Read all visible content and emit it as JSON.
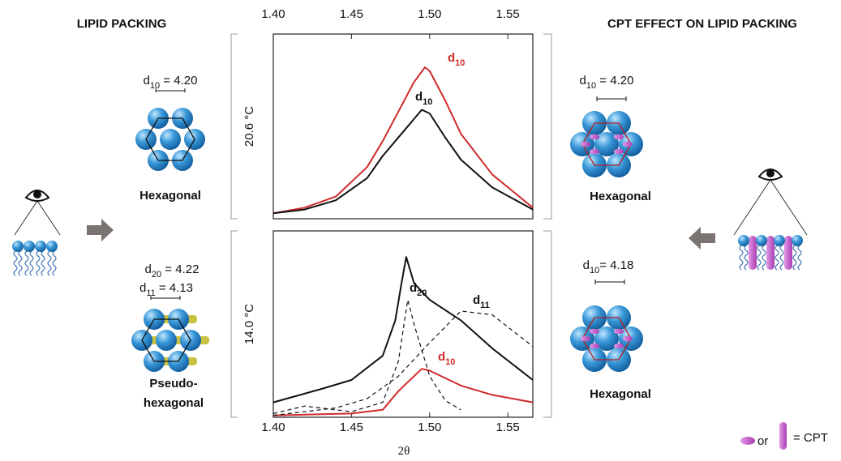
{
  "chart_data": [
    {
      "type": "line",
      "xlim": [
        1.4,
        1.566
      ],
      "xticks": [
        {
          "value": 1.4,
          "label": "1.40"
        },
        1.45,
        {
          "value": 1.5,
          "label": "1.50"
        },
        1.55
      ],
      "ylabel": "20.6 °C",
      "ylim": [
        0,
        100
      ],
      "series": [
        {
          "label": {
            "symbol": "d",
            "sub": "10"
          },
          "color": "#d02a2a",
          "x": [
            1.4,
            1.42,
            1.44,
            1.46,
            1.47,
            1.48,
            1.49,
            1.497,
            1.5,
            1.51,
            1.52,
            1.54,
            1.566
          ],
          "values": [
            3,
            6,
            12,
            28,
            42,
            58,
            74,
            82,
            80,
            64,
            46,
            24,
            6
          ]
        },
        {
          "label": {
            "symbol": "d",
            "sub": "10"
          },
          "color": "#111111",
          "x": [
            1.4,
            1.42,
            1.44,
            1.46,
            1.47,
            1.48,
            1.49,
            1.495,
            1.5,
            1.51,
            1.52,
            1.54,
            1.566
          ],
          "values": [
            3,
            5,
            10,
            22,
            34,
            44,
            54,
            59,
            57,
            44,
            32,
            17,
            5
          ]
        }
      ]
    },
    {
      "type": "line",
      "xlim": [
        1.4,
        1.566
      ],
      "xticks": [
        {
          "value": 1.4,
          "label": "1.40"
        },
        1.45,
        {
          "value": 1.5,
          "label": "1.50"
        },
        1.55
      ],
      "xlabel": "2θ",
      "ylabel": "14.0 °C",
      "ylim": [
        0,
        100
      ],
      "series": [
        {
          "color": "#111111",
          "x": [
            1.4,
            1.43,
            1.45,
            1.47,
            1.478,
            1.482,
            1.485,
            1.49,
            1.5,
            1.52,
            1.54,
            1.566
          ],
          "values": [
            8,
            15,
            20,
            33,
            52,
            72,
            86,
            72,
            63,
            52,
            37,
            20
          ]
        },
        {
          "label": {
            "symbol": "d",
            "sub": "10"
          },
          "color": "#d02a2a",
          "x": [
            1.4,
            1.45,
            1.47,
            1.48,
            1.495,
            1.5,
            1.52,
            1.54,
            1.566
          ],
          "values": [
            1,
            2,
            4,
            14,
            26,
            25,
            17,
            12,
            8
          ]
        },
        {
          "label": {
            "symbol": "d",
            "sub": "20"
          },
          "color": "#111111",
          "dash": true,
          "x": [
            1.4,
            1.42,
            1.43,
            1.45,
            1.47,
            1.48,
            1.486,
            1.49,
            1.5,
            1.51,
            1.52
          ],
          "values": [
            2,
            6,
            5,
            3,
            8,
            30,
            63,
            50,
            22,
            9,
            4
          ]
        },
        {
          "label": {
            "symbol": "d",
            "sub": "11"
          },
          "color": "#111111",
          "dash": true,
          "x": [
            1.4,
            1.44,
            1.46,
            1.48,
            1.5,
            1.52,
            1.54,
            1.566
          ],
          "values": [
            1,
            5,
            10,
            22,
            40,
            57,
            55,
            38
          ]
        }
      ]
    }
  ],
  "diagram": {
    "left": {
      "title": "LIPID PACKING",
      "hex": {
        "d": {
          "symbol": "d",
          "sub": "10",
          "text": " = 4.20"
        },
        "caption": "Hexagonal"
      },
      "pseudo": {
        "d1": {
          "symbol": "d",
          "sub": "20",
          "text": " = 4.22"
        },
        "d2": {
          "symbol": "d",
          "sub": "11",
          "text": " = 4.13"
        },
        "caption": [
          "Pseudo-",
          "hexagonal"
        ]
      }
    },
    "right": {
      "title": "CPT EFFECT ON LIPID PACKING",
      "hex1": {
        "d": {
          "symbol": "d",
          "sub": "10",
          "text": " = 4.20"
        },
        "caption": "Hexagonal"
      },
      "hex2": {
        "d": {
          "symbol": "d",
          "sub": "10",
          "text": "= 4.18"
        },
        "caption": "Hexagonal"
      }
    },
    "legend": {
      "or": "or",
      "cpt": "= CPT"
    }
  }
}
